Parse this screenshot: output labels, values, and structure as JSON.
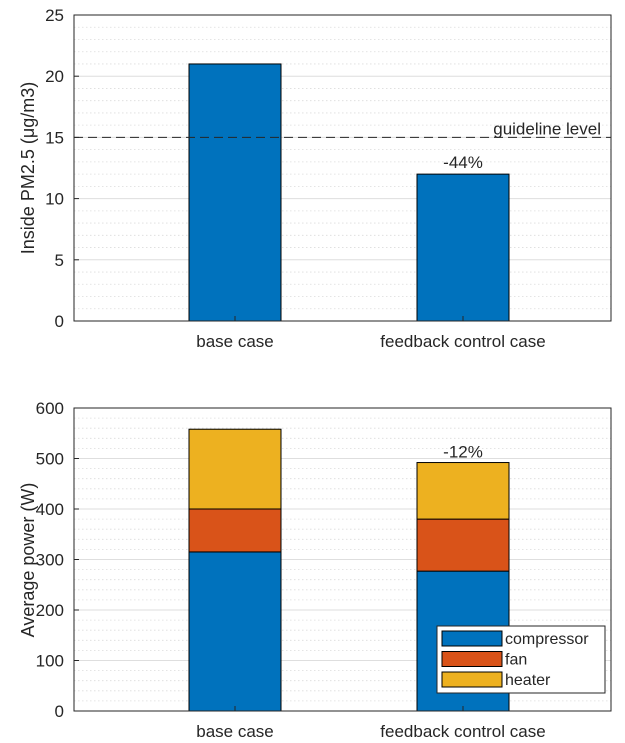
{
  "colors": {
    "bar": "#0072BD",
    "compressor": "#0072BD",
    "fan": "#D95319",
    "heater": "#EDB120",
    "guideline": "#262626"
  },
  "chart_data": [
    {
      "type": "bar",
      "categories": [
        "base case",
        "feedback control case"
      ],
      "values": [
        21,
        12
      ],
      "ylabel": "Inside PM2.5 (μg/m3)",
      "ylim": [
        0,
        25
      ],
      "yticks": [
        "0",
        "5",
        "10",
        "15",
        "20",
        "25"
      ],
      "grid": true,
      "reference_line": {
        "value": 15,
        "label": "guideline level",
        "style": "dashed"
      },
      "annotations": [
        {
          "category": "feedback control case",
          "text": "-44%"
        }
      ]
    },
    {
      "type": "bar",
      "stacked": true,
      "categories": [
        "base case",
        "feedback control case"
      ],
      "series": [
        {
          "name": "compressor",
          "values": [
            315,
            277
          ]
        },
        {
          "name": "fan",
          "values": [
            85,
            103
          ]
        },
        {
          "name": "heater",
          "values": [
            158,
            112
          ]
        }
      ],
      "ylabel": "Average power (W)",
      "ylim": [
        0,
        600
      ],
      "yticks": [
        "0",
        "100",
        "200",
        "300",
        "400",
        "500",
        "600"
      ],
      "grid": true,
      "legend": "bottom-right",
      "annotations": [
        {
          "category": "feedback control case",
          "text": "-12%"
        }
      ]
    }
  ]
}
